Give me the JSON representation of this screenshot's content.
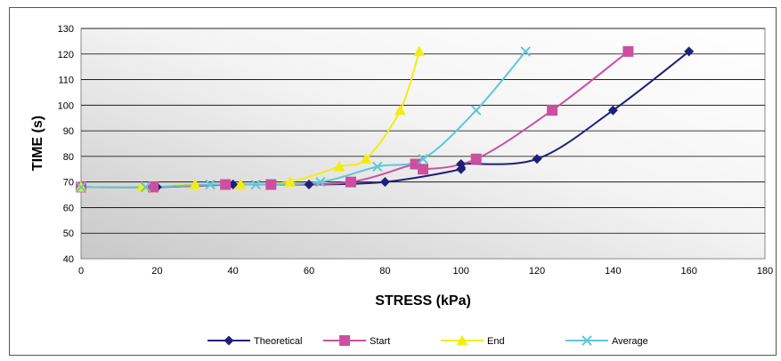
{
  "chart_data": {
    "type": "line",
    "title": "",
    "xlabel": "STRESS (kPa)",
    "ylabel": "TIME (s)",
    "xlim": [
      0,
      180
    ],
    "ylim": [
      40,
      130
    ],
    "xticks": [
      0,
      20,
      40,
      60,
      80,
      100,
      120,
      140,
      160,
      180
    ],
    "yticks": [
      40,
      50,
      60,
      70,
      80,
      90,
      100,
      110,
      120,
      130
    ],
    "grid": "horizontal",
    "legend_position": "bottom",
    "series": [
      {
        "name": "Theoretical",
        "color": "#1f1f7a",
        "marker": "diamond",
        "points": [
          [
            0,
            68
          ],
          [
            20,
            68
          ],
          [
            40,
            69
          ],
          [
            60,
            69
          ],
          [
            80,
            70
          ],
          [
            100,
            75
          ],
          [
            100,
            77
          ],
          [
            120,
            79
          ],
          [
            140,
            98
          ],
          [
            160,
            121
          ]
        ]
      },
      {
        "name": "Start",
        "color": "#cc4fa0",
        "marker": "square",
        "points": [
          [
            0,
            68
          ],
          [
            19,
            68
          ],
          [
            38,
            69
          ],
          [
            50,
            69
          ],
          [
            71,
            70
          ],
          [
            88,
            77
          ],
          [
            90,
            75
          ],
          [
            104,
            79
          ],
          [
            124,
            98
          ],
          [
            144,
            121
          ]
        ]
      },
      {
        "name": "End",
        "color": "#f2ec14",
        "marker": "triangle",
        "points": [
          [
            0,
            68
          ],
          [
            16,
            68
          ],
          [
            30,
            69
          ],
          [
            42,
            69
          ],
          [
            55,
            70
          ],
          [
            68,
            76
          ],
          [
            75,
            79
          ],
          [
            84,
            98
          ],
          [
            89,
            121
          ]
        ]
      },
      {
        "name": "Average",
        "color": "#5cc8d8",
        "marker": "x",
        "points": [
          [
            0,
            68
          ],
          [
            17,
            68
          ],
          [
            34,
            69
          ],
          [
            46,
            69
          ],
          [
            63,
            70
          ],
          [
            78,
            76
          ],
          [
            90,
            79
          ],
          [
            104,
            98
          ],
          [
            117,
            121
          ]
        ]
      }
    ]
  }
}
